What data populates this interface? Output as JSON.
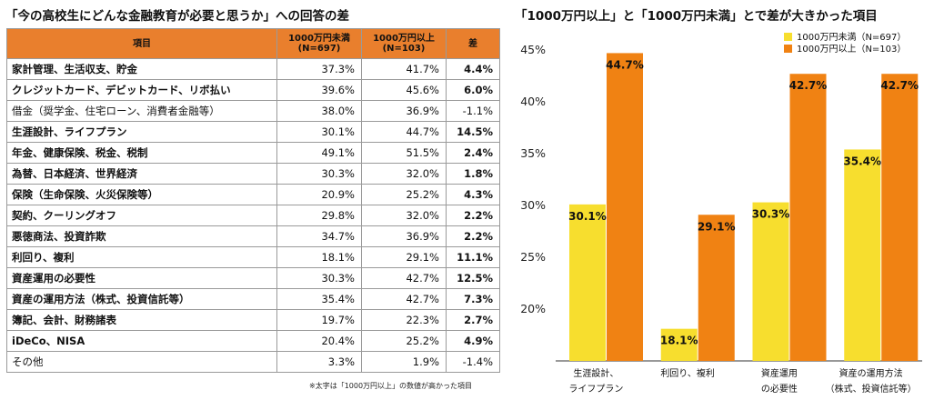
{
  "left_panel": {
    "title": "「今の高校生にどんな金融教育が必要と思うか」への回答の差",
    "headers": {
      "item": "項目",
      "under_line1": "1000万円未満",
      "under_line2": "(N=697)",
      "over_line1": "1000万円以上",
      "over_line2": "(N=103)",
      "diff": "差"
    },
    "rows": [
      {
        "item": "家計管理、生活収支、貯金",
        "under": "37.3%",
        "over": "41.7%",
        "diff": "4.4%",
        "bold": true
      },
      {
        "item": "クレジットカード、デビットカード、リボ払い",
        "under": "39.6%",
        "over": "45.6%",
        "diff": "6.0%",
        "bold": true
      },
      {
        "item": "借金（奨学金、住宅ローン、消費者金融等）",
        "under": "38.0%",
        "over": "36.9%",
        "diff": "-1.1%",
        "bold": false
      },
      {
        "item": "生涯設計、ライフプラン",
        "under": "30.1%",
        "over": "44.7%",
        "diff": "14.5%",
        "bold": true
      },
      {
        "item": "年金、健康保険、税金、税制",
        "under": "49.1%",
        "over": "51.5%",
        "diff": "2.4%",
        "bold": true
      },
      {
        "item": "為替、日本経済、世界経済",
        "under": "30.3%",
        "over": "32.0%",
        "diff": "1.8%",
        "bold": true
      },
      {
        "item": "保険（生命保険、火災保険等）",
        "under": "20.9%",
        "over": "25.2%",
        "diff": "4.3%",
        "bold": true
      },
      {
        "item": "契約、クーリングオフ",
        "under": "29.8%",
        "over": "32.0%",
        "diff": "2.2%",
        "bold": true
      },
      {
        "item": "悪徳商法、投資詐欺",
        "under": "34.7%",
        "over": "36.9%",
        "diff": "2.2%",
        "bold": true
      },
      {
        "item": "利回り、複利",
        "under": "18.1%",
        "over": "29.1%",
        "diff": "11.1%",
        "bold": true
      },
      {
        "item": "資産運用の必要性",
        "under": "30.3%",
        "over": "42.7%",
        "diff": "12.5%",
        "bold": true
      },
      {
        "item": "資産の運用方法（株式、投資信託等）",
        "under": "35.4%",
        "over": "42.7%",
        "diff": "7.3%",
        "bold": true
      },
      {
        "item": "簿記、会計、財務諸表",
        "under": "19.7%",
        "over": "22.3%",
        "diff": "2.7%",
        "bold": true
      },
      {
        "item": "iDeCo、NISA",
        "under": "20.4%",
        "over": "25.2%",
        "diff": "4.9%",
        "bold": true
      },
      {
        "item": "その他",
        "under": "3.3%",
        "over": "1.9%",
        "diff": "-1.4%",
        "bold": false
      }
    ],
    "note": "※太字は「1000万円以上」の数値が高かった項目",
    "header_color": "#e97f2d"
  },
  "chart_data": {
    "type": "bar",
    "title": "「1000万円以上」と「1000万円未満」とで差が大きかった項目",
    "categories": [
      [
        "生涯設計、",
        "ライフプラン"
      ],
      [
        "利回り、複利"
      ],
      [
        "資産運用",
        "の必要性"
      ],
      [
        "資産の運用方法",
        "（株式、投資信託等）"
      ]
    ],
    "series": [
      {
        "name": "1000万円未満（N=697）",
        "values": [
          30.1,
          18.1,
          30.3,
          35.4
        ],
        "labels": [
          "30.1%",
          "18.1%",
          "30.3%",
          "35.4%"
        ],
        "color": "#f7de2e"
      },
      {
        "name": "1000万円以上（N=103）",
        "values": [
          44.7,
          29.1,
          42.7,
          42.7
        ],
        "labels": [
          "44.7%",
          "29.1%",
          "42.7%",
          "42.7%"
        ],
        "color": "#f08213"
      }
    ],
    "ylim": [
      15,
      45
    ],
    "yticks": [
      20,
      25,
      30,
      35,
      40,
      45
    ],
    "ytick_labels": [
      "20%",
      "25%",
      "30%",
      "35%",
      "40%",
      "45%"
    ],
    "grid": false,
    "legend": "top-right",
    "xlabel": "",
    "ylabel": ""
  }
}
